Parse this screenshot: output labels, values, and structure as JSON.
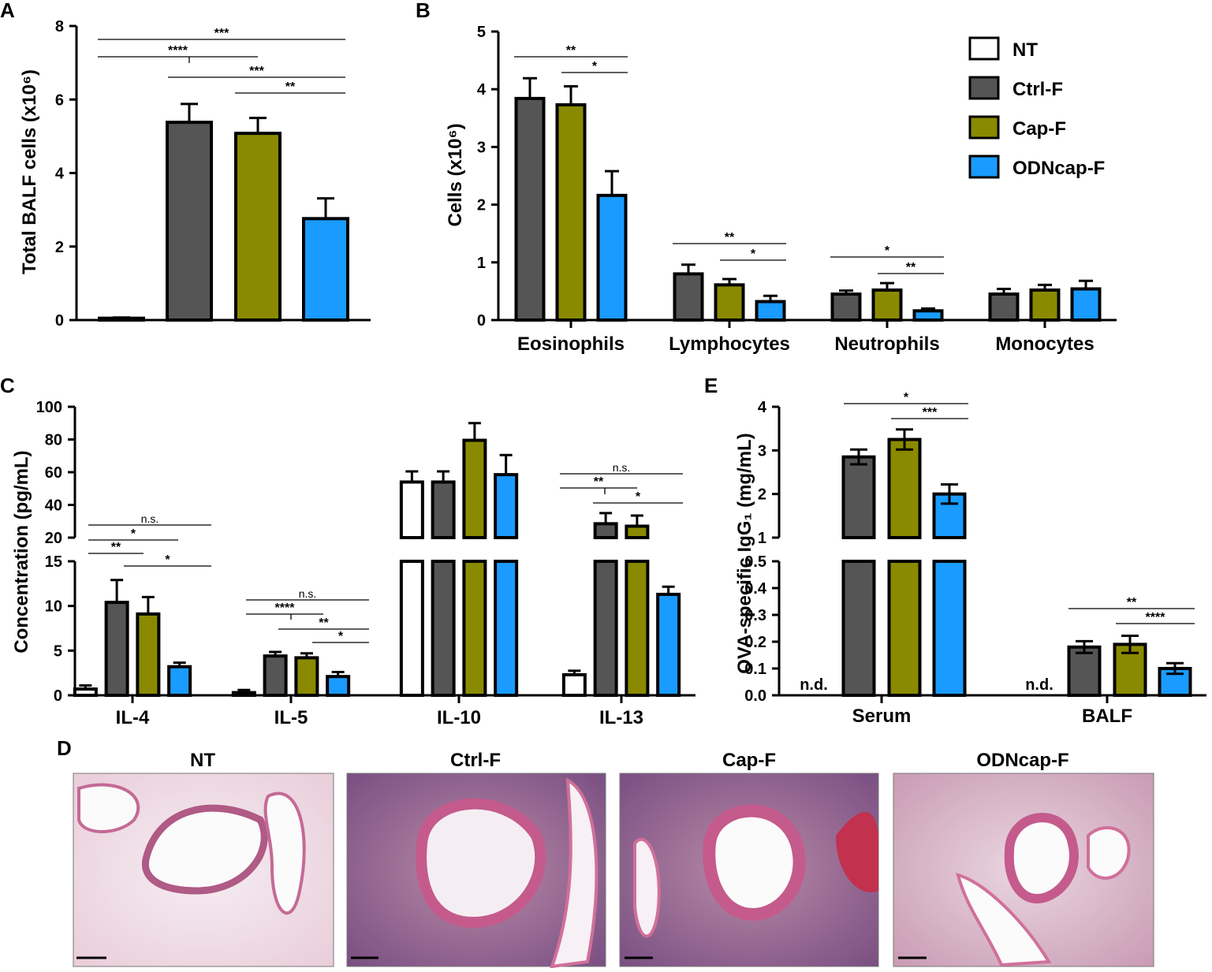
{
  "colors": {
    "NT": "#ffffff",
    "Ctrl-F": "#555555",
    "Cap-F": "#8a8a00",
    "ODNcap-F": "#1a9bff"
  },
  "panel_letters": [
    "A",
    "B",
    "C",
    "D",
    "E"
  ],
  "legend": [
    "NT",
    "Ctrl-F",
    "Cap-F",
    "ODNcap-F"
  ],
  "not_detected_label": "n.d.",
  "chart_data": [
    {
      "panel": "A",
      "type": "bar",
      "ylabel": "Total BALF cells (x10⁶)",
      "ylim": [
        0,
        8
      ],
      "yticks": [
        0,
        2,
        4,
        6,
        8
      ],
      "groups": [
        "NT",
        "Ctrl-F",
        "Cap-F",
        "ODNcap-F"
      ],
      "values": [
        0.05,
        5.38,
        5.08,
        2.76
      ],
      "errors": [
        0.02,
        0.5,
        0.42,
        0.55
      ],
      "significance": [
        {
          "label": "***",
          "from": "NT",
          "to": "ODNcap-F"
        },
        {
          "label": "****",
          "from": "NT",
          "to": "Ctrl-F/Cap-F"
        },
        {
          "label": "***",
          "from": "Ctrl-F",
          "to": "ODNcap-F"
        },
        {
          "label": "**",
          "from": "Cap-F",
          "to": "ODNcap-F"
        }
      ]
    },
    {
      "panel": "B",
      "type": "bar",
      "ylabel": "Cells (x10⁶)",
      "ylim": [
        0,
        5
      ],
      "yticks": [
        0,
        1,
        2,
        3,
        4,
        5
      ],
      "categories": [
        "Eosinophils",
        "Lymphocytes",
        "Neutrophils",
        "Monocytes"
      ],
      "series": [
        {
          "name": "Ctrl-F",
          "values": [
            3.84,
            0.8,
            0.45,
            0.45
          ],
          "errors": [
            0.35,
            0.16,
            0.06,
            0.09
          ]
        },
        {
          "name": "Cap-F",
          "values": [
            3.73,
            0.61,
            0.52,
            0.52
          ],
          "errors": [
            0.32,
            0.1,
            0.12,
            0.09
          ]
        },
        {
          "name": "ODNcap-F",
          "values": [
            2.16,
            0.32,
            0.16,
            0.54
          ],
          "errors": [
            0.42,
            0.1,
            0.04,
            0.14
          ]
        }
      ],
      "significance": [
        {
          "category": "Eosinophils",
          "label": "**",
          "from": "Ctrl-F",
          "to": "ODNcap-F"
        },
        {
          "category": "Eosinophils",
          "label": "*",
          "from": "Cap-F",
          "to": "ODNcap-F"
        },
        {
          "category": "Lymphocytes",
          "label": "**",
          "from": "Ctrl-F",
          "to": "ODNcap-F"
        },
        {
          "category": "Lymphocytes",
          "label": "*",
          "from": "Cap-F",
          "to": "ODNcap-F"
        },
        {
          "category": "Neutrophils",
          "label": "*",
          "from": "Ctrl-F",
          "to": "ODNcap-F"
        },
        {
          "category": "Neutrophils",
          "label": "**",
          "from": "Cap-F",
          "to": "ODNcap-F"
        }
      ]
    },
    {
      "panel": "C",
      "type": "bar",
      "ylabel": "Concentration (pg/mL)",
      "axis_break": [
        15,
        20
      ],
      "yticks_lower": [
        0,
        5,
        10,
        15
      ],
      "yticks_upper": [
        20,
        40,
        60,
        80,
        100
      ],
      "categories": [
        "IL-4",
        "IL-5",
        "IL-10",
        "IL-13"
      ],
      "series": [
        {
          "name": "NT",
          "values": [
            0.7,
            0.3,
            54,
            2.3
          ],
          "errors": [
            0.4,
            0.3,
            6.5,
            0.45
          ]
        },
        {
          "name": "Ctrl-F",
          "values": [
            10.4,
            4.4,
            54,
            28.5
          ],
          "errors": [
            2.5,
            0.45,
            6.5,
            6.5
          ]
        },
        {
          "name": "Cap-F",
          "values": [
            9.1,
            4.2,
            79.5,
            27
          ],
          "errors": [
            1.9,
            0.5,
            10.5,
            6.5
          ]
        },
        {
          "name": "ODNcap-F",
          "values": [
            3.2,
            2.1,
            58.5,
            11.3
          ],
          "errors": [
            0.45,
            0.5,
            12,
            0.85
          ]
        }
      ],
      "significance": [
        {
          "category": "IL-4",
          "label": "n.s.",
          "from": "NT",
          "to": "ODNcap-F"
        },
        {
          "category": "IL-4",
          "label": "*",
          "from": "NT",
          "to": "Cap-F"
        },
        {
          "category": "IL-4",
          "label": "**",
          "from": "NT",
          "to": "Ctrl-F"
        },
        {
          "category": "IL-4",
          "label": "*",
          "from": "Ctrl-F",
          "to": "ODNcap-F"
        },
        {
          "category": "IL-5",
          "label": "n.s.",
          "from": "NT",
          "to": "ODNcap-F"
        },
        {
          "category": "IL-5",
          "label": "****",
          "from": "NT",
          "to": "Ctrl-F/Cap-F"
        },
        {
          "category": "IL-5",
          "label": "**",
          "from": "Ctrl-F",
          "to": "ODNcap-F"
        },
        {
          "category": "IL-5",
          "label": "*",
          "from": "Cap-F",
          "to": "ODNcap-F"
        },
        {
          "category": "IL-13",
          "label": "n.s.",
          "from": "NT",
          "to": "ODNcap-F"
        },
        {
          "category": "IL-13",
          "label": "**",
          "from": "NT",
          "to": "Ctrl-F/Cap-F"
        },
        {
          "category": "IL-13",
          "label": "*",
          "from": "Ctrl-F",
          "to": "ODNcap-F"
        }
      ]
    },
    {
      "panel": "E",
      "type": "bar",
      "ylabel": "OVA-specific IgG₁ (mg/mL)",
      "axis_break": [
        0.5,
        1
      ],
      "yticks_lower": [
        0.0,
        0.1,
        0.2,
        0.3,
        0.4,
        0.5
      ],
      "yticks_upper": [
        1,
        2,
        3,
        4
      ],
      "categories": [
        "Serum",
        "BALF"
      ],
      "series": [
        {
          "name": "NT",
          "values": [
            null,
            null
          ],
          "errors": [
            null,
            null
          ]
        },
        {
          "name": "Ctrl-F",
          "values": [
            2.85,
            0.18
          ],
          "errors": [
            0.17,
            0.022
          ]
        },
        {
          "name": "Cap-F",
          "values": [
            3.25,
            0.19
          ],
          "errors": [
            0.23,
            0.032
          ]
        },
        {
          "name": "ODNcap-F",
          "values": [
            2.0,
            0.1
          ],
          "errors": [
            0.22,
            0.02
          ]
        }
      ],
      "significance": [
        {
          "category": "Serum",
          "label": "*",
          "from": "Ctrl-F",
          "to": "ODNcap-F"
        },
        {
          "category": "Serum",
          "label": "***",
          "from": "Cap-F",
          "to": "ODNcap-F"
        },
        {
          "category": "BALF",
          "label": "**",
          "from": "Ctrl-F",
          "to": "ODNcap-F"
        },
        {
          "category": "BALF",
          "label": "****",
          "from": "Cap-F",
          "to": "ODNcap-F"
        }
      ]
    }
  ],
  "micrographs": [
    {
      "title": "NT",
      "stain": "pale"
    },
    {
      "title": "Ctrl-F",
      "stain": "dense"
    },
    {
      "title": "Cap-F",
      "stain": "dense"
    },
    {
      "title": "ODNcap-F",
      "stain": "moderate"
    }
  ]
}
